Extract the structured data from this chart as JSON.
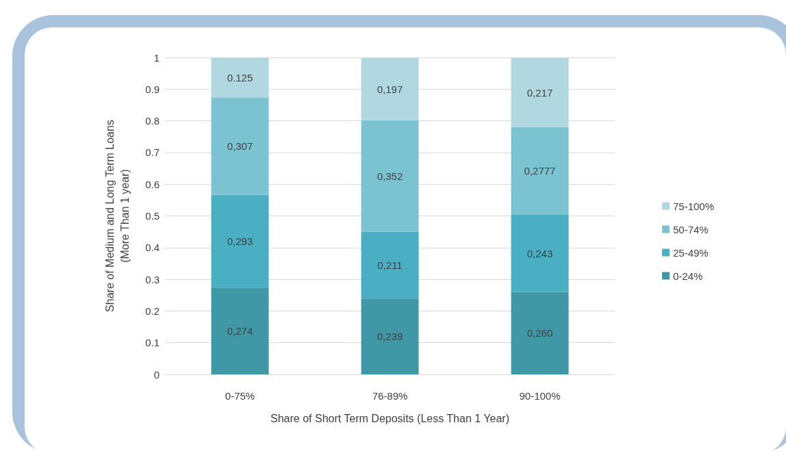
{
  "chart_data": {
    "type": "bar",
    "stacked": true,
    "xlabel": "Share of Short Term Deposits (Less Than 1 Year)",
    "ylabel": "Share of Medium and Long Term Loans\n(More Than 1 year)",
    "categories": [
      "0-75%",
      "76-89%",
      "90-100%"
    ],
    "series": [
      {
        "name": "0-24%",
        "color": "#4097a5",
        "values": [
          0.274,
          0.239,
          0.26
        ],
        "value_labels": [
          "0,274",
          "0,239",
          "0,260"
        ]
      },
      {
        "name": "25-49%",
        "color": "#4bafc3",
        "values": [
          0.293,
          0.211,
          0.243
        ],
        "value_labels": [
          "0,293",
          "0,211",
          "0,243"
        ]
      },
      {
        "name": "50-74%",
        "color": "#7cc3d2",
        "values": [
          0.307,
          0.352,
          0.2777
        ],
        "value_labels": [
          "0,307",
          "0,352",
          "0,2777"
        ]
      },
      {
        "name": "75-100%",
        "color": "#b1d8e0",
        "values": [
          0.125,
          0.197,
          0.217
        ],
        "value_labels": [
          "0.125",
          "0,197",
          "0,217"
        ]
      }
    ],
    "ylim": [
      0,
      1
    ],
    "yticks": [
      0,
      0.1,
      0.2,
      0.3,
      0.4,
      0.5,
      0.6,
      0.7,
      0.8,
      0.9,
      1
    ],
    "grid": "y",
    "legend": "right"
  }
}
